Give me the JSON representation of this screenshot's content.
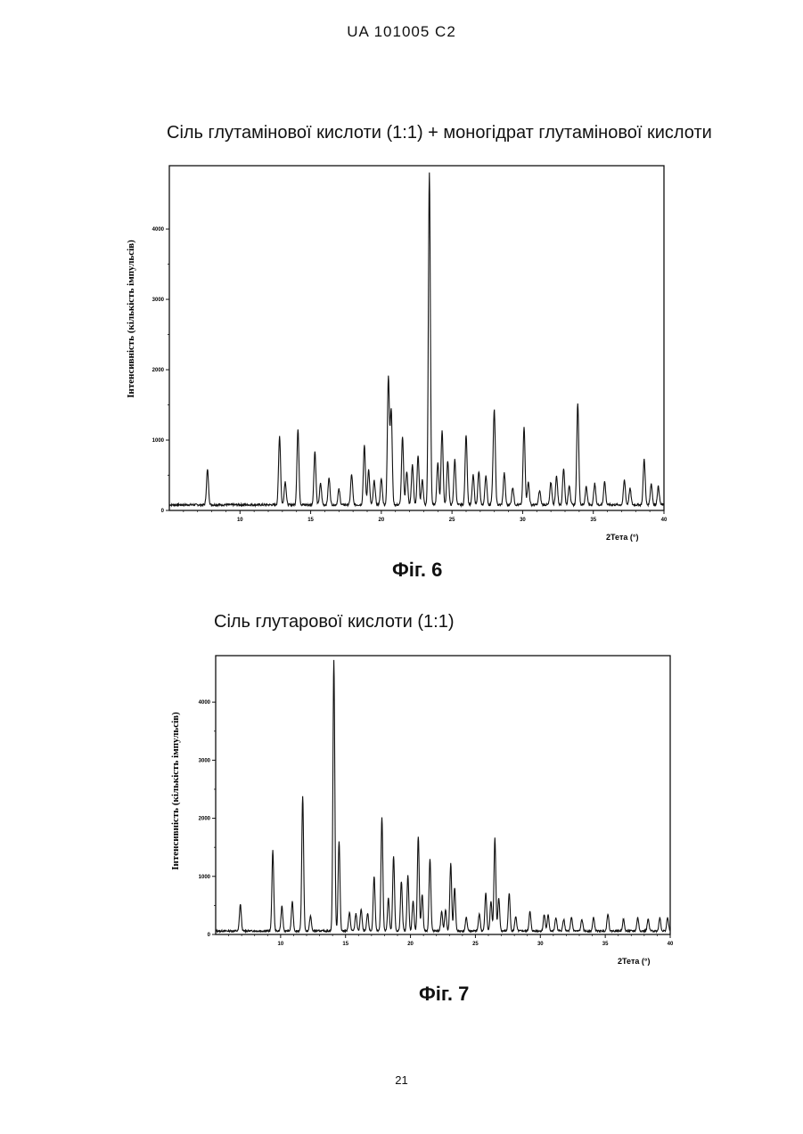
{
  "header": {
    "text": "UA   101005   C2"
  },
  "page_number": "21",
  "figures": [
    {
      "title": "Сіль глутамінової кислоти (1:1) + моногідрат глутамінової кислоти",
      "caption": "Фіг. 6"
    },
    {
      "title": "Сіль глутарової кислоти (1:1)",
      "caption": "Фіг. 7"
    }
  ],
  "chart_data": [
    {
      "type": "line",
      "title": "Сіль глутамінової кислоти (1:1) + моногідрат глутамінової кислоти",
      "xlabel": "2Тета (°)",
      "ylabel": "Інтенсивність (кількість імпульсів)",
      "xlim": [
        5,
        40
      ],
      "ylim": [
        0,
        4900
      ],
      "xticks": [
        10,
        15,
        20,
        25,
        30,
        35,
        40
      ],
      "yticks": [
        0,
        1000,
        2000,
        3000,
        4000
      ],
      "xtick_labels": [
        "10",
        "15",
        "20",
        "25",
        "30",
        "35",
        "40"
      ],
      "ytick_labels": [
        "0",
        "1000",
        "2000",
        "3000",
        "4000"
      ],
      "baseline": 80,
      "peaks": [
        [
          7.7,
          500
        ],
        [
          12.8,
          980
        ],
        [
          13.2,
          330
        ],
        [
          14.1,
          1070
        ],
        [
          15.3,
          760
        ],
        [
          15.7,
          300
        ],
        [
          16.3,
          380
        ],
        [
          17.0,
          220
        ],
        [
          17.9,
          430
        ],
        [
          18.8,
          840
        ],
        [
          19.1,
          500
        ],
        [
          19.5,
          340
        ],
        [
          20.0,
          370
        ],
        [
          20.5,
          1820
        ],
        [
          20.7,
          1350
        ],
        [
          21.5,
          960
        ],
        [
          21.8,
          480
        ],
        [
          22.2,
          570
        ],
        [
          22.6,
          690
        ],
        [
          22.9,
          350
        ],
        [
          23.4,
          4720
        ],
        [
          24.0,
          600
        ],
        [
          24.3,
          1060
        ],
        [
          24.7,
          630
        ],
        [
          25.2,
          640
        ],
        [
          26.0,
          1000
        ],
        [
          26.5,
          420
        ],
        [
          26.9,
          470
        ],
        [
          27.4,
          420
        ],
        [
          27.9,
          250
        ],
        [
          28.0,
          1250
        ],
        [
          28.7,
          450
        ],
        [
          29.3,
          250
        ],
        [
          30.1,
          1100
        ],
        [
          30.4,
          320
        ],
        [
          31.2,
          200
        ],
        [
          32.0,
          320
        ],
        [
          32.4,
          410
        ],
        [
          32.9,
          520
        ],
        [
          33.3,
          280
        ],
        [
          33.9,
          1450
        ],
        [
          34.5,
          260
        ],
        [
          35.1,
          300
        ],
        [
          35.8,
          330
        ],
        [
          37.2,
          350
        ],
        [
          37.6,
          230
        ],
        [
          38.6,
          650
        ],
        [
          39.1,
          300
        ],
        [
          39.6,
          260
        ]
      ]
    },
    {
      "type": "line",
      "title": "Сіль глутарової кислоти (1:1)",
      "xlabel": "2Тета (°)",
      "ylabel": "Інтенсивність (кількість імпульсів)",
      "xlim": [
        5,
        40
      ],
      "ylim": [
        0,
        4800
      ],
      "xticks": [
        10,
        15,
        20,
        25,
        30,
        35,
        40
      ],
      "yticks": [
        0,
        1000,
        2000,
        3000,
        4000
      ],
      "xtick_labels": [
        "10",
        "15",
        "20",
        "25",
        "30",
        "35",
        "40"
      ],
      "ytick_labels": [
        "0",
        "1000",
        "2000",
        "3000",
        "4000"
      ],
      "baseline": 60,
      "peaks": [
        [
          6.9,
          460
        ],
        [
          9.4,
          1380
        ],
        [
          10.1,
          420
        ],
        [
          10.9,
          500
        ],
        [
          11.7,
          2330
        ],
        [
          12.3,
          260
        ],
        [
          14.1,
          4660
        ],
        [
          14.5,
          1540
        ],
        [
          15.3,
          320
        ],
        [
          15.8,
          300
        ],
        [
          16.2,
          380
        ],
        [
          16.7,
          300
        ],
        [
          17.2,
          950
        ],
        [
          17.8,
          1970
        ],
        [
          18.3,
          570
        ],
        [
          18.7,
          1290
        ],
        [
          19.3,
          860
        ],
        [
          19.8,
          950
        ],
        [
          20.2,
          520
        ],
        [
          20.6,
          1630
        ],
        [
          20.9,
          630
        ],
        [
          21.5,
          1250
        ],
        [
          22.4,
          330
        ],
        [
          22.7,
          360
        ],
        [
          23.1,
          1160
        ],
        [
          23.4,
          750
        ],
        [
          24.3,
          230
        ],
        [
          25.3,
          300
        ],
        [
          25.8,
          660
        ],
        [
          26.2,
          520
        ],
        [
          26.5,
          1600
        ],
        [
          26.8,
          560
        ],
        [
          27.6,
          650
        ],
        [
          28.1,
          250
        ],
        [
          29.2,
          330
        ],
        [
          30.3,
          290
        ],
        [
          30.6,
          270
        ],
        [
          31.2,
          230
        ],
        [
          31.8,
          200
        ],
        [
          32.4,
          230
        ],
        [
          33.2,
          200
        ],
        [
          34.1,
          230
        ],
        [
          35.2,
          300
        ],
        [
          36.4,
          200
        ],
        [
          37.5,
          230
        ],
        [
          38.3,
          200
        ],
        [
          39.2,
          230
        ],
        [
          39.8,
          230
        ]
      ]
    }
  ]
}
